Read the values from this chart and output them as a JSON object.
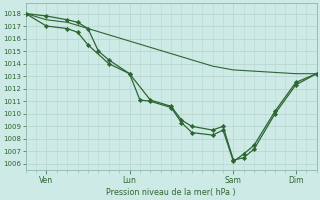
{
  "background_color": "#ceeae6",
  "grid_color": "#b8d8d0",
  "line_color": "#2d6632",
  "ylabel_text": "Pression niveau de la mer( hPa )",
  "ylim": [
    1005.5,
    1018.8
  ],
  "yticks": [
    1006,
    1007,
    1008,
    1009,
    1010,
    1011,
    1012,
    1013,
    1014,
    1015,
    1016,
    1017,
    1018
  ],
  "xtick_labels": [
    "Ven",
    "Lun",
    "Sam",
    "Dim"
  ],
  "xtick_positions": [
    1,
    5,
    10,
    13
  ],
  "xlim": [
    0,
    14
  ],
  "series1_x": [
    0,
    1,
    2,
    2.5,
    3,
    3.5,
    4,
    5,
    6,
    7,
    7.5,
    8,
    9,
    9.5,
    10,
    10.5,
    11,
    12,
    13,
    14
  ],
  "series1_y": [
    1018.0,
    1017.8,
    1017.5,
    1017.3,
    1016.8,
    1015.0,
    1014.3,
    1013.2,
    1011.1,
    1010.6,
    1009.5,
    1009.0,
    1008.7,
    1009.0,
    1006.3,
    1006.5,
    1007.2,
    1010.0,
    1012.3,
    1013.2
  ],
  "series2_x": [
    0,
    1,
    2,
    2.5,
    3,
    4,
    5,
    5.5,
    6,
    7,
    7.5,
    8,
    9,
    9.5,
    10,
    10.5,
    11,
    12,
    13,
    14
  ],
  "series2_y": [
    1018.0,
    1017.0,
    1016.8,
    1016.5,
    1015.5,
    1014.0,
    1013.2,
    1011.1,
    1011.0,
    1010.5,
    1009.3,
    1008.5,
    1008.3,
    1008.7,
    1006.2,
    1006.8,
    1007.5,
    1010.2,
    1012.5,
    1013.2
  ],
  "series3_x": [
    0,
    1,
    2,
    3,
    4,
    5,
    6,
    7,
    8,
    9,
    10,
    11,
    12,
    13,
    14
  ],
  "series3_y": [
    1018.0,
    1017.5,
    1017.3,
    1016.8,
    1016.3,
    1015.8,
    1015.3,
    1014.8,
    1014.3,
    1013.8,
    1013.5,
    1013.4,
    1013.3,
    1013.2,
    1013.2
  ]
}
